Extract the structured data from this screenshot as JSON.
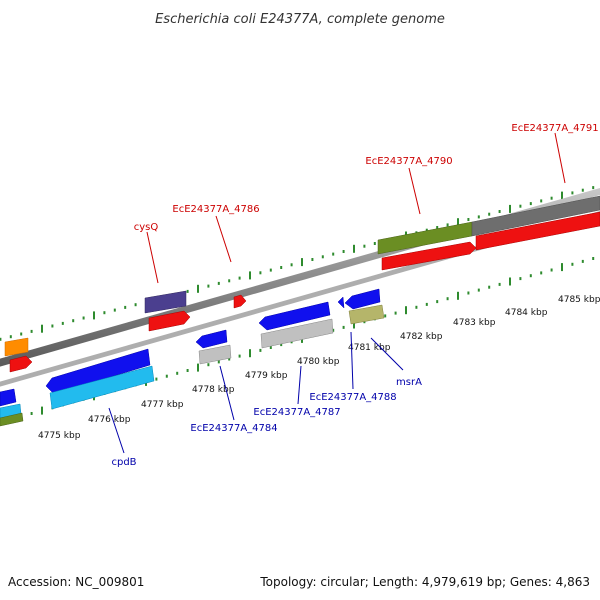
{
  "title": "Escherichia coli E24377A, complete genome",
  "footer": {
    "accession": "Accession: NC_009801",
    "summary": "Topology: circular; Length: 4,979,619 bp; Genes: 4,863"
  },
  "colors": {
    "forward_label": "#cc0000",
    "reverse_label": "#0000aa",
    "ticks": "#2e8b2e",
    "backbone": "#8a8a8a"
  },
  "scale_ticks": [
    {
      "label": "4775 kbp"
    },
    {
      "label": "4776 kbp"
    },
    {
      "label": "4777 kbp"
    },
    {
      "label": "4778 kbp"
    },
    {
      "label": "4779 kbp"
    },
    {
      "label": "4780 kbp"
    },
    {
      "label": "4781 kbp"
    },
    {
      "label": "4782 kbp"
    },
    {
      "label": "4783 kbp"
    },
    {
      "label": "4784 kbp"
    },
    {
      "label": "4785 kbp"
    }
  ],
  "gene_labels": {
    "top": [
      {
        "text": "cysQ"
      },
      {
        "text": "EcE24377A_4786"
      },
      {
        "text": "EcE24377A_4790"
      },
      {
        "text": "EcE24377A_4791"
      }
    ],
    "bottom": [
      {
        "text": "cpdB"
      },
      {
        "text": "EcE24377A_4784"
      },
      {
        "text": "EcE24377A_4787"
      },
      {
        "text": "EcE24377A_4788"
      },
      {
        "text": "msrA"
      }
    ]
  }
}
